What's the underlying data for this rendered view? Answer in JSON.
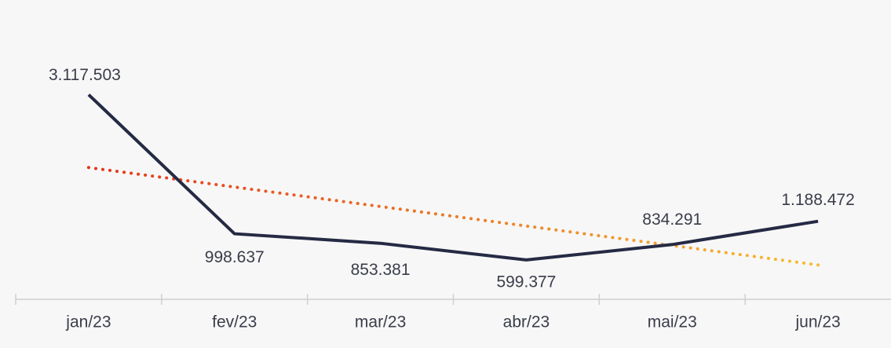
{
  "chart_data": {
    "type": "line",
    "categories": [
      "jan/23",
      "fev/23",
      "mar/23",
      "abr/23",
      "mai/23",
      "jun/23"
    ],
    "series": [
      {
        "color": "#252a44",
        "values": [
          3117503,
          998637,
          853381,
          599377,
          834291,
          1188472
        ],
        "value_labels": [
          "3.117.503",
          "998.637",
          "853.381",
          "599.377",
          "834.291",
          "1.188.472"
        ]
      }
    ],
    "trendline": true,
    "ylim": [
      0,
      4500000
    ]
  }
}
